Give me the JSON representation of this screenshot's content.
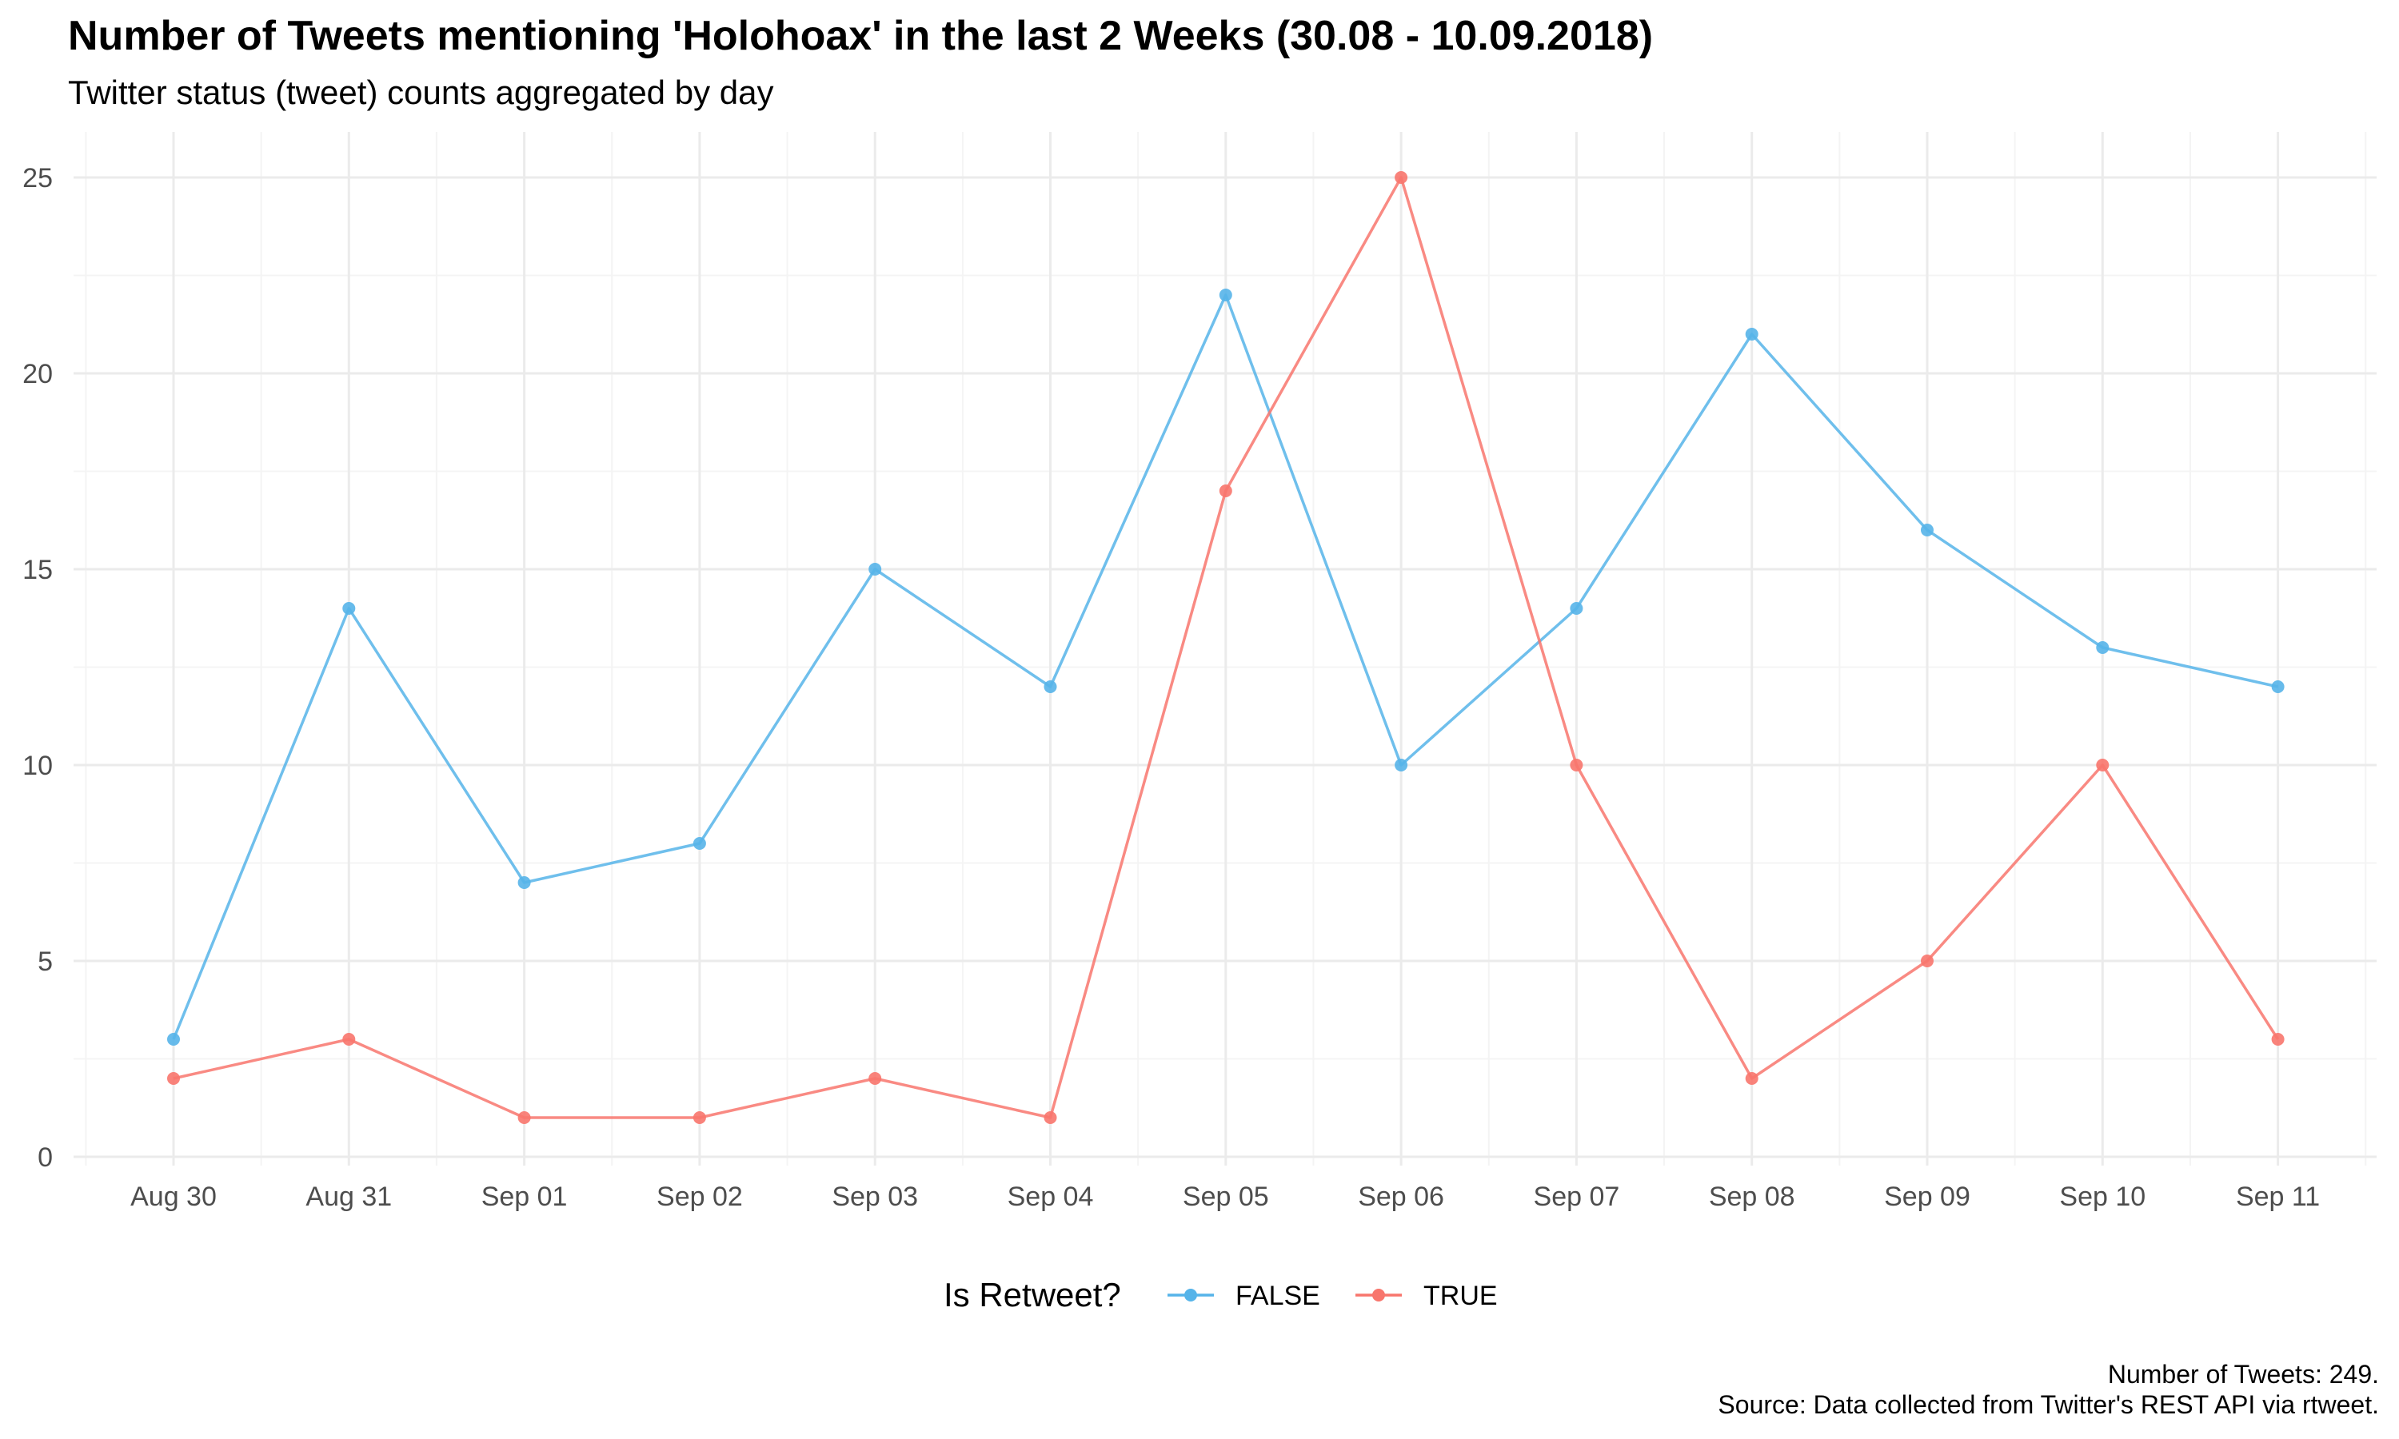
{
  "chart_data": {
    "type": "line",
    "title": "Number of Tweets mentioning 'Holohoax' in the last 2 Weeks (30.08 - 10.09.2018)",
    "subtitle": "Twitter status (tweet) counts aggregated by day",
    "xlabel": "",
    "ylabel": "",
    "categories": [
      "Aug 30",
      "Aug 31",
      "Sep 01",
      "Sep 02",
      "Sep 03",
      "Sep 04",
      "Sep 05",
      "Sep 06",
      "Sep 07",
      "Sep 08",
      "Sep 09",
      "Sep 10",
      "Sep 11"
    ],
    "series": [
      {
        "name": "FALSE",
        "color": "#56b4e9",
        "values": [
          3,
          14,
          7,
          8,
          15,
          12,
          22,
          10,
          14,
          21,
          16,
          13,
          12
        ]
      },
      {
        "name": "TRUE",
        "color": "#f8766d",
        "values": [
          2,
          3,
          1,
          1,
          2,
          1,
          17,
          25,
          10,
          2,
          5,
          10,
          3
        ]
      }
    ],
    "ylim": [
      0,
      26
    ],
    "yticks": [
      0,
      5,
      10,
      15,
      20,
      25
    ],
    "grid": true,
    "legend": {
      "title": "Is Retweet?",
      "position": "bottom"
    },
    "caption": [
      "Number of Tweets: 249.",
      "Source: Data collected from Twitter's REST API via rtweet."
    ]
  }
}
